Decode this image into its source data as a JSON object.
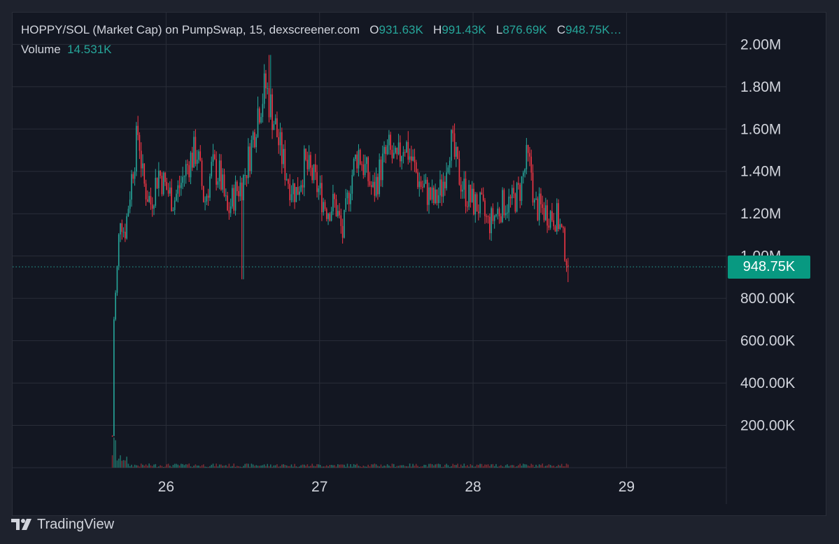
{
  "legend": {
    "symbol_text": "HOPPY/SOL (Market Cap) on PumpSwap, 15, dexscreener.com",
    "open_label": "O",
    "open_value": "931.63K",
    "high_label": "H",
    "high_value": "991.43K",
    "low_label": "L",
    "low_value": "876.69K",
    "close_label": "C",
    "close_value": "948.75K…",
    "volume_label": "Volume",
    "volume_value": "14.531K"
  },
  "price_tag": "948.75K",
  "brand": {
    "name": "TradingView",
    "logo_icon": "tradingview-logo-icon"
  },
  "colors": {
    "background": "#131722",
    "frame": "#1e222d",
    "grid": "#2a2e39",
    "up": "#26a69a",
    "down": "#f23645",
    "tag": "#089981",
    "text": "#d1d4dc"
  },
  "chart_data": {
    "type": "candlestick",
    "interval": "15",
    "x_axis": {
      "ticks": [
        "26",
        "27",
        "28",
        "29"
      ],
      "range_days": [
        25.0,
        29.65
      ]
    },
    "y_axis": {
      "scale": "linear",
      "range": [
        0,
        2150000
      ],
      "ticks": [
        {
          "value": 2000000,
          "label": "2.00M"
        },
        {
          "value": 1800000,
          "label": "1.80M"
        },
        {
          "value": 1600000,
          "label": "1.60M"
        },
        {
          "value": 1400000,
          "label": "1.40M"
        },
        {
          "value": 1200000,
          "label": "1.20M"
        },
        {
          "value": 1000000,
          "label": "1.00M"
        },
        {
          "value": 800000,
          "label": "800.00K"
        },
        {
          "value": 600000,
          "label": "600.00K"
        },
        {
          "value": 400000,
          "label": "400.00K"
        },
        {
          "value": 200000,
          "label": "200.00K"
        }
      ]
    },
    "grid": true,
    "last_price": 948750,
    "ohlc_last": {
      "open": 931630,
      "high": 991430,
      "low": 876690,
      "close": 948750
    },
    "volume_last": 14531,
    "price_path": [
      [
        25.65,
        150000
      ],
      [
        25.66,
        700000
      ],
      [
        25.68,
        920000
      ],
      [
        25.7,
        1200000
      ],
      [
        25.73,
        1100000
      ],
      [
        25.78,
        1400000
      ],
      [
        25.82,
        1600000
      ],
      [
        25.85,
        1350000
      ],
      [
        25.9,
        1250000
      ],
      [
        25.95,
        1400000
      ],
      [
        26.0,
        1320000
      ],
      [
        26.05,
        1260000
      ],
      [
        26.1,
        1350000
      ],
      [
        26.15,
        1450000
      ],
      [
        26.2,
        1500000
      ],
      [
        26.25,
        1250000
      ],
      [
        26.3,
        1420000
      ],
      [
        26.35,
        1380000
      ],
      [
        26.4,
        1200000
      ],
      [
        26.45,
        1300000
      ],
      [
        26.5,
        1350000
      ],
      [
        26.55,
        1500000
      ],
      [
        26.6,
        1700000
      ],
      [
        26.65,
        1800000
      ],
      [
        26.7,
        1650000
      ],
      [
        26.75,
        1480000
      ],
      [
        26.8,
        1350000
      ],
      [
        26.85,
        1300000
      ],
      [
        26.9,
        1430000
      ],
      [
        26.95,
        1380000
      ],
      [
        27.0,
        1300000
      ],
      [
        27.05,
        1220000
      ],
      [
        27.1,
        1250000
      ],
      [
        27.15,
        1100000
      ],
      [
        27.2,
        1350000
      ],
      [
        27.25,
        1500000
      ],
      [
        27.3,
        1400000
      ],
      [
        27.35,
        1300000
      ],
      [
        27.4,
        1420000
      ],
      [
        27.45,
        1500000
      ],
      [
        27.5,
        1420000
      ],
      [
        27.55,
        1550000
      ],
      [
        27.6,
        1450000
      ],
      [
        27.65,
        1350000
      ],
      [
        27.7,
        1300000
      ],
      [
        27.75,
        1250000
      ],
      [
        27.8,
        1330000
      ],
      [
        27.85,
        1550000
      ],
      [
        27.9,
        1400000
      ],
      [
        27.95,
        1300000
      ],
      [
        28.0,
        1250000
      ],
      [
        28.05,
        1230000
      ],
      [
        28.1,
        1150000
      ],
      [
        28.15,
        1200000
      ],
      [
        28.2,
        1250000
      ],
      [
        28.25,
        1250000
      ],
      [
        28.3,
        1300000
      ],
      [
        28.35,
        1450000
      ],
      [
        28.38,
        1400000
      ],
      [
        28.4,
        1230000
      ],
      [
        28.45,
        1220000
      ],
      [
        28.5,
        1200000
      ],
      [
        28.55,
        1180000
      ],
      [
        28.58,
        1100000
      ],
      [
        28.62,
        948750
      ]
    ]
  }
}
